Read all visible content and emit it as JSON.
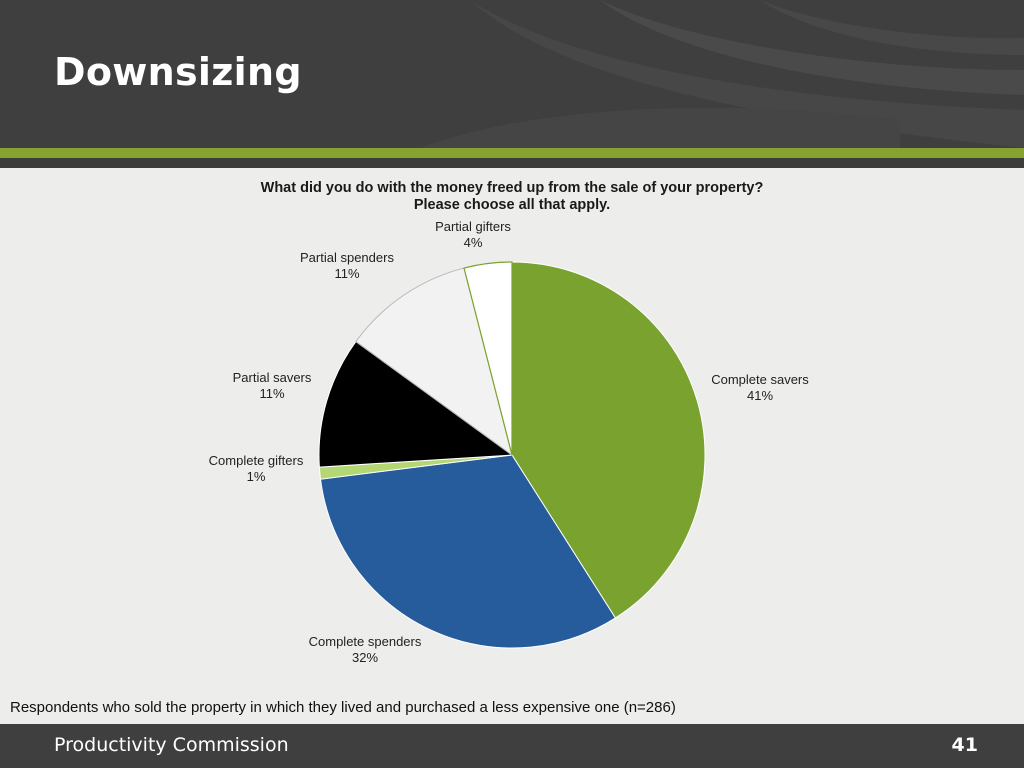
{
  "slide": {
    "title": "Downsizing",
    "organization": "Productivity Commission",
    "page_number": "41",
    "note": "Respondents who sold the property in which they lived and purchased a less expensive one (n=286)"
  },
  "chart_data": {
    "type": "pie",
    "title": [
      "What did you do with the money freed up from the sale of your property?",
      "Please choose all that apply."
    ],
    "slices": [
      {
        "name": "Complete savers",
        "value": 41,
        "label": "41%",
        "color": "#79a22f"
      },
      {
        "name": "Complete spenders",
        "value": 32,
        "label": "32%",
        "color": "#265b9c"
      },
      {
        "name": "Complete gifters",
        "value": 1,
        "label": "1%",
        "color": "#b3d873"
      },
      {
        "name": "Partial savers",
        "value": 11,
        "label": "11%",
        "color": "#000000"
      },
      {
        "name": "Partial spenders",
        "value": 11,
        "label": "11%",
        "color": "#f2f2f2"
      },
      {
        "name": "Partial gifters",
        "value": 4,
        "label": "4%",
        "color": "#ffffff"
      }
    ],
    "legend": "none"
  }
}
